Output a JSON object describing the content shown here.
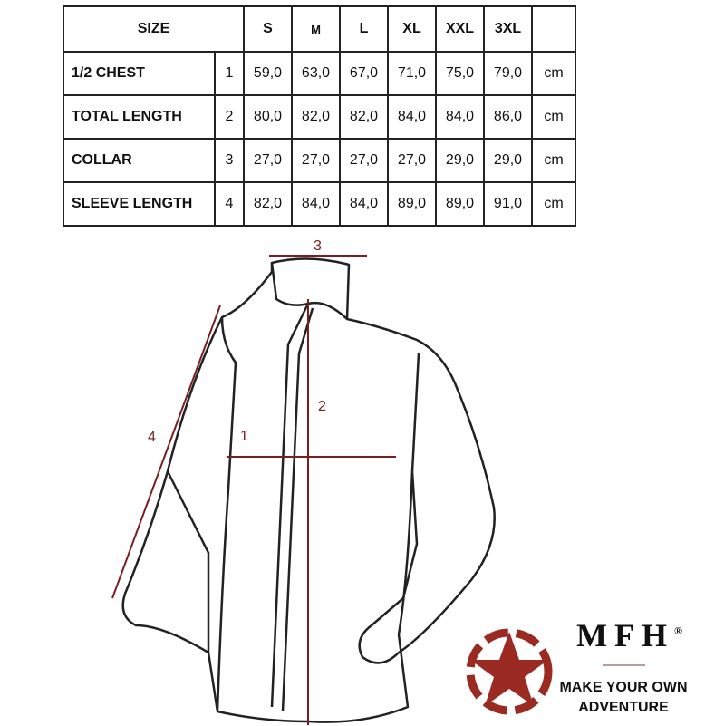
{
  "table": {
    "header": {
      "label": "SIZE",
      "sizes": [
        "S",
        "M",
        "L",
        "XL",
        "XXL",
        "3XL"
      ]
    },
    "rows": [
      {
        "label": "1/2 CHEST",
        "num": "1",
        "values": [
          "59,0",
          "63,0",
          "67,0",
          "71,0",
          "75,0",
          "79,0"
        ],
        "unit": "cm"
      },
      {
        "label": "TOTAL LENGTH",
        "num": "2",
        "values": [
          "80,0",
          "82,0",
          "82,0",
          "84,0",
          "84,0",
          "86,0"
        ],
        "unit": "cm"
      },
      {
        "label": "COLLAR",
        "num": "3",
        "values": [
          "27,0",
          "27,0",
          "27,0",
          "27,0",
          "29,0",
          "29,0"
        ],
        "unit": "cm"
      },
      {
        "label": "SLEEVE LENGTH",
        "num": "4",
        "values": [
          "82,0",
          "84,0",
          "84,0",
          "89,0",
          "89,0",
          "91,0"
        ],
        "unit": "cm"
      }
    ]
  },
  "diagram": {
    "labels": [
      "1",
      "2",
      "3",
      "4"
    ],
    "measure_color": "#7a1e1e"
  },
  "logo": {
    "brand": "MFH",
    "registered": "®",
    "slogan_line1": "MAKE YOUR OWN",
    "slogan_line2": "ADVENTURE",
    "star_color": "#9b2b22"
  }
}
